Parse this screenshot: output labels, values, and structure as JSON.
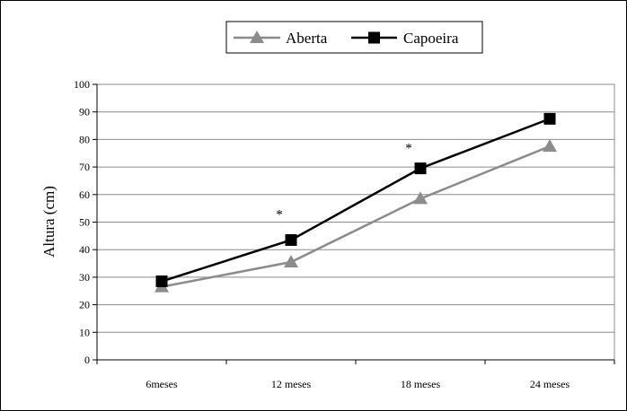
{
  "chart_data": {
    "type": "line",
    "title": "",
    "xlabel": "",
    "ylabel": "Altura (cm)",
    "categories": [
      "6meses",
      "12 meses",
      "18 meses",
      "24 meses"
    ],
    "ylim": [
      0,
      100
    ],
    "yticks": [
      0,
      10,
      20,
      30,
      40,
      50,
      60,
      70,
      80,
      90,
      100
    ],
    "grid": true,
    "legend_position": "top",
    "series": [
      {
        "name": "Aberta",
        "values": [
          26.5,
          35.5,
          58.5,
          77.5
        ],
        "color": "#8c8c8c",
        "marker": "triangle"
      },
      {
        "name": "Capoeira",
        "values": [
          28.5,
          43.5,
          69.5,
          87.5
        ],
        "color": "#000000",
        "marker": "square"
      }
    ],
    "annotations": [
      {
        "text": "*",
        "category_index": 1,
        "y": 53
      },
      {
        "text": "*",
        "category_index": 2,
        "y": 77
      }
    ]
  }
}
